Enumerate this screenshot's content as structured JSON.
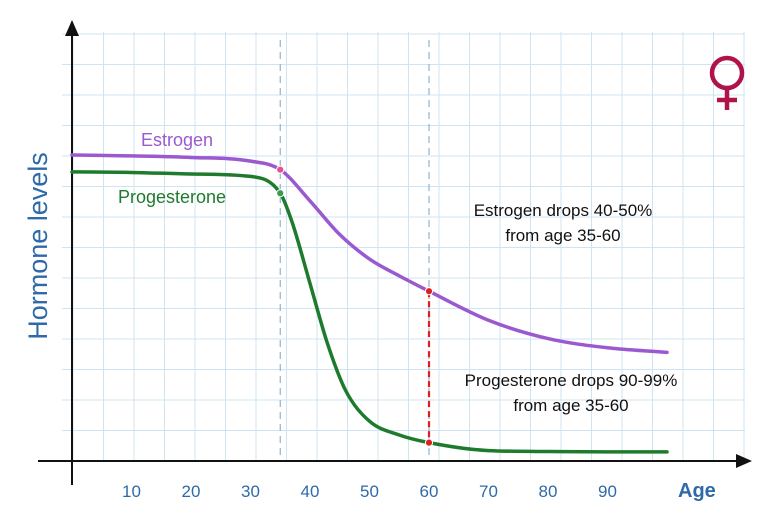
{
  "chart_data": {
    "type": "line",
    "xlabel": "Age",
    "ylabel": "Hormone levels",
    "x_ticks": [
      10,
      20,
      30,
      40,
      50,
      60,
      70,
      80,
      90
    ],
    "xlim": [
      0,
      100
    ],
    "ylim": [
      0,
      100
    ],
    "grid": true,
    "series": [
      {
        "name": "Estrogen",
        "color": "#9b59d0",
        "x": [
          0,
          10,
          20,
          30,
          35,
          40,
          45,
          50,
          55,
          60,
          70,
          80,
          90,
          100
        ],
        "y": [
          100,
          99.7,
          99.2,
          98,
          95.2,
          85,
          74,
          66,
          60.5,
          55.5,
          46,
          40,
          37,
          35.5
        ]
      },
      {
        "name": "Progesterone",
        "color": "#1e7b2e",
        "x": [
          0,
          10,
          20,
          30,
          35,
          37,
          40,
          43,
          46,
          50,
          55,
          60,
          70,
          80,
          90,
          100
        ],
        "y": [
          94.5,
          94.3,
          93.8,
          93,
          87.5,
          78,
          58,
          38,
          23,
          13,
          8.5,
          6,
          3.4,
          3.1,
          3,
          3
        ]
      }
    ],
    "markers": [
      {
        "series": "Estrogen",
        "x": 35,
        "y": 95.2
      },
      {
        "series": "Progesterone",
        "x": 35,
        "y": 87.5
      },
      {
        "series": "Estrogen",
        "x": 60,
        "y": 55.5
      },
      {
        "series": "Progesterone",
        "x": 60,
        "y": 6
      }
    ],
    "vlines": [
      35,
      60
    ],
    "drop_line": {
      "x": 60,
      "from": 55.5,
      "to": 6,
      "color": "#e02020"
    },
    "annotations": [
      {
        "lines": [
          "Estrogen drops 40-50%",
          "from age 35-60"
        ]
      },
      {
        "lines": [
          "Progesterone drops 90-99%",
          "from age 35-60"
        ]
      }
    ],
    "symbol": {
      "name": "female-symbol",
      "color": "#b0124a"
    }
  }
}
